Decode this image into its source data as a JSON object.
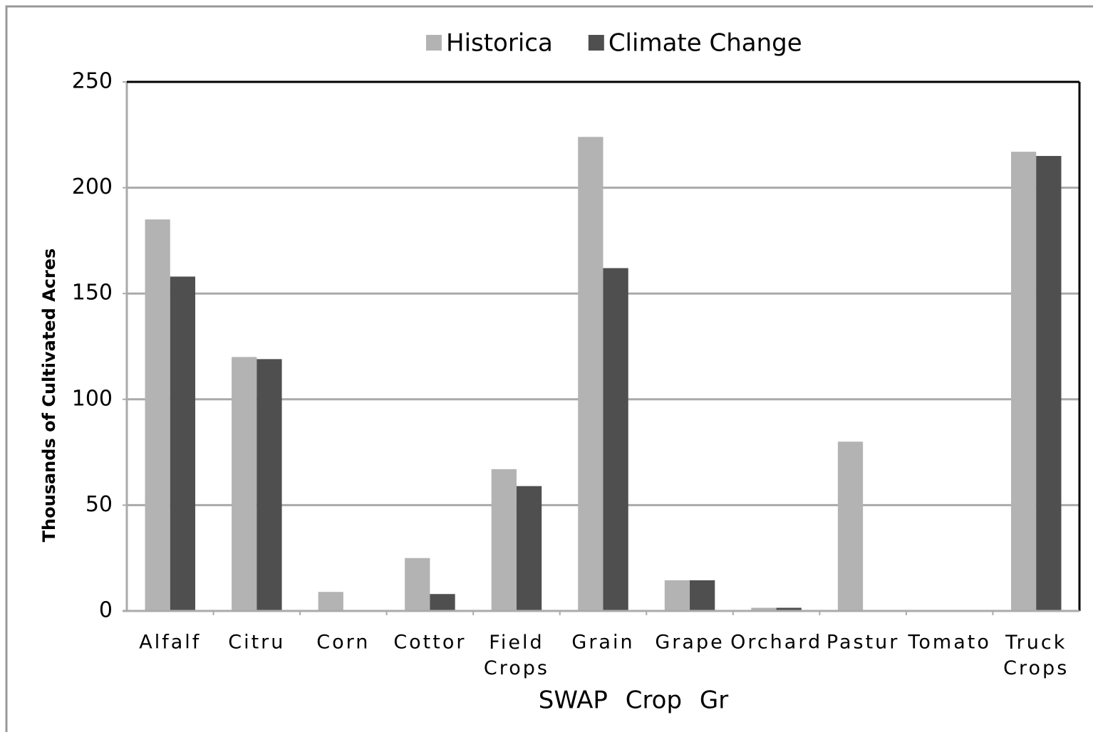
{
  "chart_data": {
    "type": "bar",
    "categories": [
      "Alfalf",
      "Citru",
      "Corn",
      "Cottor",
      "Field Crops",
      "Grain",
      "Grape",
      "Orchard",
      "Pastur",
      "Tomato",
      "Truck Crops"
    ],
    "series": [
      {
        "name": "Historica",
        "color": "#b3b3b3",
        "values": [
          185,
          120,
          9,
          25,
          67,
          224,
          14.5,
          1.5,
          80,
          0,
          217
        ]
      },
      {
        "name": "Climate Change",
        "color": "#4f4f4f",
        "values": [
          158,
          119,
          0,
          8,
          59,
          162,
          14.5,
          1.5,
          0,
          0,
          215
        ]
      }
    ],
    "ylabel": "Thousands of Cultivated Acres",
    "xlabel": "SWAP Crop Gr",
    "ylim": [
      0,
      250
    ],
    "yticks": [
      0,
      50,
      100,
      150,
      200,
      250
    ],
    "grid": true,
    "legend": "top"
  }
}
